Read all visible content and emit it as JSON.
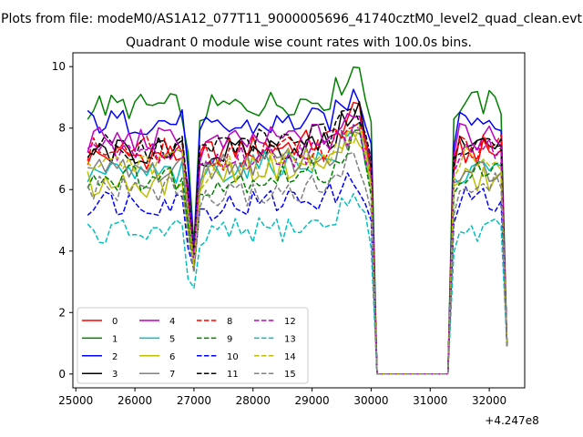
{
  "chart_data": {
    "type": "line",
    "suptitle": "Plots from file: modeM0/AS1A12_077T11_9000005696_41740cztM0_level2_quad_clean.evt",
    "title": "Quadrant 0 module wise count rates with 100.0s bins.",
    "x_offset_label": "+4.247e8",
    "xlim": [
      24950,
      32600
    ],
    "ylim": [
      -0.45,
      10.45
    ],
    "xticks": [
      25000,
      26000,
      27000,
      28000,
      29000,
      30000,
      31000,
      32000
    ],
    "xtick_labels": [
      "25000",
      "26000",
      "27000",
      "28000",
      "29000",
      "30000",
      "31000",
      "32000"
    ],
    "yticks": [
      0,
      2,
      4,
      6,
      8,
      10
    ],
    "ytick_labels": [
      "0",
      "2",
      "4",
      "6",
      "8",
      "10"
    ],
    "legend_placement": "lower-left",
    "legend_columns": 4,
    "x_segments": [
      {
        "start": 25200,
        "end": 26900,
        "step": 100
      },
      {
        "start": 27000,
        "end": 30000,
        "step": 100
      },
      {
        "start": 30100,
        "end": 31300,
        "step": 100
      },
      {
        "start": 31400,
        "end": 32300,
        "step": 100
      }
    ],
    "series": [
      {
        "name": "0",
        "color": "#ff0000",
        "dash": "solid",
        "level": 7.1,
        "seg2": 7.6,
        "peak": 8.5,
        "dip": 3.6
      },
      {
        "name": "1",
        "color": "#008000",
        "dash": "solid",
        "level": 8.7,
        "seg2": 9.0,
        "peak": 9.9,
        "dip": 4.2
      },
      {
        "name": "2",
        "color": "#0000ff",
        "dash": "solid",
        "level": 8.2,
        "seg2": 8.3,
        "peak": 9.0,
        "dip": 4.0
      },
      {
        "name": "3",
        "color": "#000000",
        "dash": "solid",
        "level": 7.2,
        "seg2": 7.5,
        "peak": 8.6,
        "dip": 3.8
      },
      {
        "name": "4",
        "color": "#bf00bf",
        "dash": "solid",
        "level": 7.6,
        "seg2": 7.8,
        "peak": 8.2,
        "dip": 3.9
      },
      {
        "name": "5",
        "color": "#00bfbf",
        "dash": "solid",
        "level": 6.5,
        "seg2": 7.0,
        "peak": 7.9,
        "dip": 3.6
      },
      {
        "name": "6",
        "color": "#bfbf00",
        "dash": "solid",
        "level": 6.2,
        "seg2": 6.9,
        "peak": 7.8,
        "dip": 3.5
      },
      {
        "name": "7",
        "color": "#808080",
        "dash": "solid",
        "level": 6.6,
        "seg2": 7.1,
        "peak": 7.7,
        "dip": 3.7
      },
      {
        "name": "8",
        "color": "#ff0000",
        "dash": "dashed",
        "level": 7.3,
        "seg2": 7.4,
        "peak": 8.3,
        "dip": 3.8
      },
      {
        "name": "9",
        "color": "#008000",
        "dash": "dashed",
        "level": 6.4,
        "seg2": 6.6,
        "peak": 7.6,
        "dip": 3.6
      },
      {
        "name": "10",
        "color": "#0000ff",
        "dash": "dashed",
        "level": 5.6,
        "seg2": 5.8,
        "peak": 6.2,
        "dip": 3.4
      },
      {
        "name": "11",
        "color": "#000000",
        "dash": "dashed",
        "level": 7.4,
        "seg2": 7.8,
        "peak": 8.4,
        "dip": 3.9
      },
      {
        "name": "12",
        "color": "#bf00bf",
        "dash": "dashed",
        "level": 7.2,
        "seg2": 7.3,
        "peak": 8.0,
        "dip": 3.8
      },
      {
        "name": "13",
        "color": "#00bfbf",
        "dash": "dashed",
        "level": 4.6,
        "seg2": 4.9,
        "peak": 5.8,
        "dip": 2.8
      },
      {
        "name": "14",
        "color": "#bfbf00",
        "dash": "dashed",
        "level": 6.9,
        "seg2": 7.0,
        "peak": 7.6,
        "dip": 3.5
      },
      {
        "name": "15",
        "color": "#808080",
        "dash": "dashed",
        "level": 6.0,
        "seg2": 6.1,
        "peak": 6.9,
        "dip": 3.3
      }
    ]
  }
}
